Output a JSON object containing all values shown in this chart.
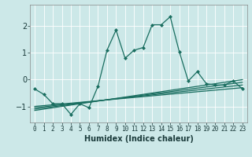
{
  "xlabel": "Humidex (Indice chaleur)",
  "background_color": "#cce8e8",
  "grid_color": "#b0d0d0",
  "line_color": "#1a6e60",
  "xlim": [
    -0.5,
    23.5
  ],
  "ylim": [
    -1.6,
    2.8
  ],
  "yticks": [
    -1,
    0,
    1,
    2
  ],
  "xticks": [
    0,
    1,
    2,
    3,
    4,
    5,
    6,
    7,
    8,
    9,
    10,
    11,
    12,
    13,
    14,
    15,
    16,
    17,
    18,
    19,
    20,
    21,
    22,
    23
  ],
  "main_line": {
    "x": [
      0,
      1,
      2,
      3,
      4,
      5,
      6,
      7,
      8,
      9,
      10,
      11,
      12,
      13,
      14,
      15,
      16,
      17,
      18,
      19,
      20,
      21,
      22,
      23
    ],
    "y": [
      -0.35,
      -0.55,
      -0.9,
      -0.9,
      -1.3,
      -0.9,
      -1.05,
      -0.25,
      1.1,
      1.85,
      0.8,
      1.1,
      1.2,
      2.05,
      2.05,
      2.35,
      1.05,
      -0.05,
      0.3,
      -0.15,
      -0.2,
      -0.2,
      -0.05,
      -0.35
    ]
  },
  "flat_lines": [
    {
      "x": [
        0,
        23
      ],
      "y": [
        -1.0,
        -0.3
      ]
    },
    {
      "x": [
        0,
        23
      ],
      "y": [
        -1.05,
        -0.2
      ]
    },
    {
      "x": [
        0,
        23
      ],
      "y": [
        -1.1,
        -0.1
      ]
    },
    {
      "x": [
        0,
        23
      ],
      "y": [
        -1.15,
        0.0
      ]
    }
  ]
}
